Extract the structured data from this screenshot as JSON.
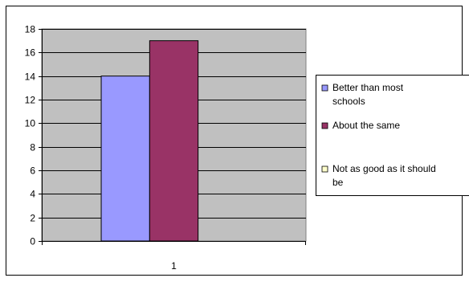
{
  "chart_data": {
    "type": "bar",
    "categories": [
      "1"
    ],
    "series": [
      {
        "name": "Better than most schools",
        "values": [
          14
        ],
        "color": "#9999ff"
      },
      {
        "name": "About the same",
        "values": [
          17
        ],
        "color": "#993366"
      },
      {
        "name": "Not as good as it should be",
        "values": [
          0
        ],
        "color": "#ffffcc"
      }
    ],
    "title": "",
    "xlabel": "",
    "ylabel": "",
    "ylim": [
      0,
      18
    ],
    "yticks": [
      0,
      2,
      4,
      6,
      8,
      10,
      12,
      14,
      16,
      18
    ],
    "grid": true,
    "legend_position": "right",
    "plot_background": "#c0c0c0"
  },
  "legend": {
    "items": [
      {
        "line1": "Better than most",
        "line2": "schools"
      },
      {
        "line1": "About the same",
        "line2": ""
      },
      {
        "line1": "Not as good as it should",
        "line2": "be"
      }
    ]
  }
}
